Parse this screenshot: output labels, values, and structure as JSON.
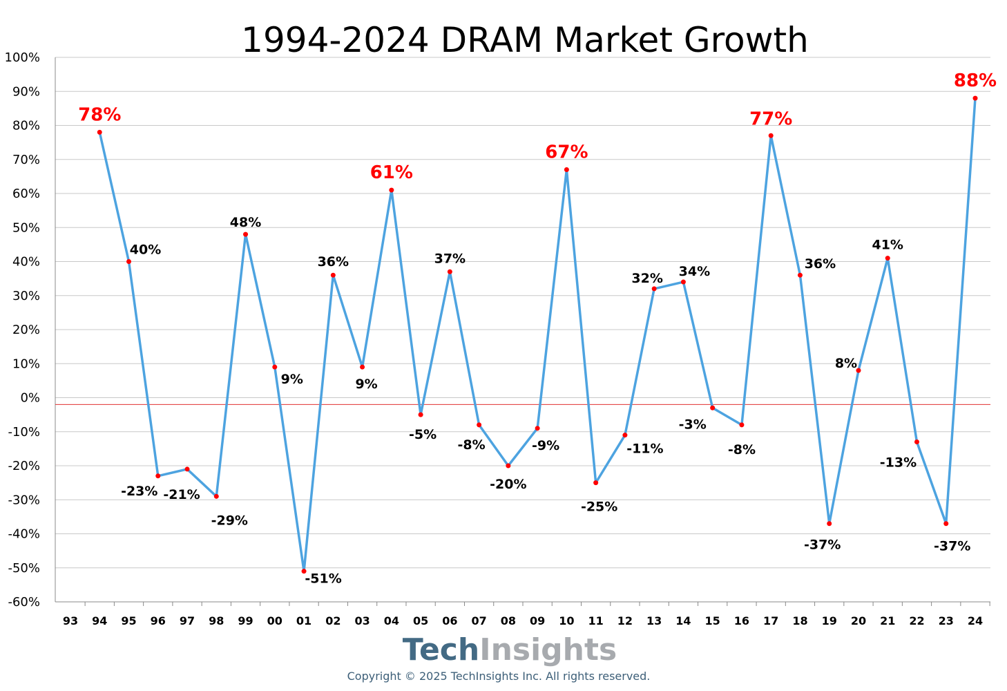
{
  "chart_data": {
    "type": "line",
    "title": "1994-2024 DRAM Market Growth",
    "xlabel": "",
    "ylabel": "",
    "categories": [
      "93",
      "94",
      "95",
      "96",
      "97",
      "98",
      "99",
      "00",
      "01",
      "02",
      "03",
      "04",
      "05",
      "06",
      "07",
      "08",
      "09",
      "10",
      "11",
      "12",
      "13",
      "14",
      "15",
      "16",
      "17",
      "18",
      "19",
      "20",
      "21",
      "22",
      "23",
      "24"
    ],
    "y_ticks": [
      "100%",
      "90%",
      "80%",
      "70%",
      "60%",
      "50%",
      "40%",
      "30%",
      "20%",
      "10%",
      "0%",
      "-10%",
      "-20%",
      "-30%",
      "-40%",
      "-50%",
      "-60%"
    ],
    "ylim": [
      -60,
      100
    ],
    "grid": true,
    "legend": "none",
    "series": [
      {
        "values": [
          null,
          78,
          40,
          -23,
          -21,
          -29,
          48,
          9,
          -51,
          36,
          9,
          61,
          -5,
          37,
          -8,
          -20,
          -9,
          67,
          -25,
          -11,
          32,
          34,
          -3,
          -8,
          77,
          36,
          -37,
          8,
          41,
          -13,
          -37,
          88
        ],
        "labels": [
          "",
          "78%",
          "40%",
          "-23%",
          "-21%",
          "-29%",
          "48%",
          "9%",
          "-51%",
          "36%",
          "9%",
          "61%",
          "-5%",
          "37%",
          "-8%",
          "-20%",
          "-9%",
          "67%",
          "-25%",
          "-11%",
          "32%",
          "34%",
          "-3%",
          "-8%",
          "77%",
          "36%",
          "-37%",
          "8%",
          "41%",
          "-13%",
          "-37%",
          "88%"
        ],
        "highlighted": [
          "94",
          "04",
          "10",
          "17",
          "24"
        ]
      }
    ],
    "reference_line": -2,
    "colors": {
      "line": "#4da3e0",
      "marker": "#ff0000",
      "highlight_label": "#ff0000",
      "reference_line": "#e03030",
      "grid": "#c8c8c8"
    }
  },
  "footer": {
    "logo_part1": "Tech",
    "logo_part2": "Insights",
    "copyright": "Copyright © 2025 TechInsights Inc.  All rights reserved."
  },
  "colors": {
    "logo_dark": "#436a84",
    "logo_light": "#a7aaae"
  }
}
